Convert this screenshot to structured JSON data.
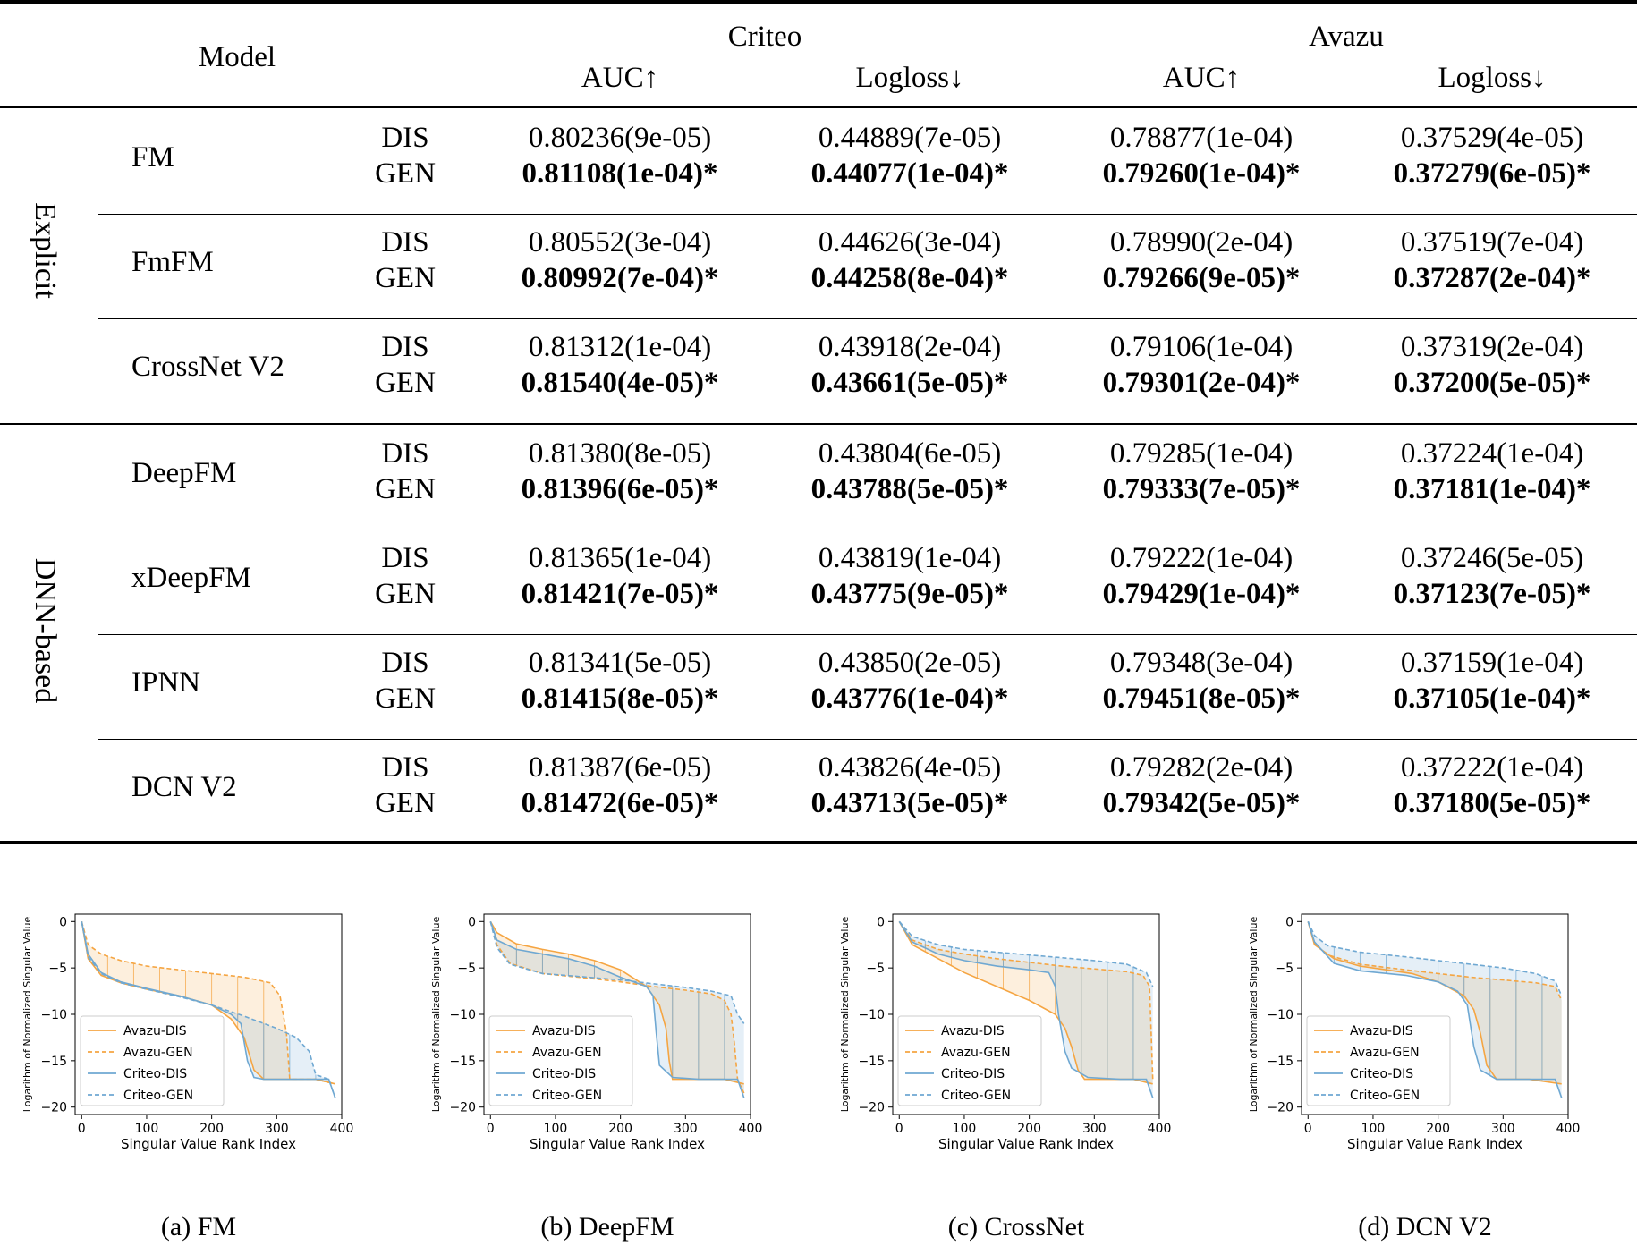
{
  "table": {
    "header": {
      "model": "Model",
      "datasets": [
        {
          "name": "Criteo",
          "metrics": [
            "AUC↑",
            "Logloss↓"
          ]
        },
        {
          "name": "Avazu",
          "metrics": [
            "AUC↑",
            "Logloss↓"
          ]
        }
      ]
    },
    "groups": [
      "Explicit",
      "DNN-based"
    ],
    "rows": [
      {
        "model": "FM",
        "dis": [
          "DIS",
          "0.80236(9e-05)",
          "0.44889(7e-05)",
          "0.78877(1e-04)",
          "0.37529(4e-05)"
        ],
        "gen": [
          "GEN",
          "0.81108(1e-04)*",
          "0.44077(1e-04)*",
          "0.79260(1e-04)*",
          "0.37279(6e-05)*"
        ]
      },
      {
        "model": "FmFM",
        "dis": [
          "DIS",
          "0.80552(3e-04)",
          "0.44626(3e-04)",
          "0.78990(2e-04)",
          "0.37519(7e-04)"
        ],
        "gen": [
          "GEN",
          "0.80992(7e-04)*",
          "0.44258(8e-04)*",
          "0.79266(9e-05)*",
          "0.37287(2e-04)*"
        ]
      },
      {
        "model": "CrossNet V2",
        "dis": [
          "DIS",
          "0.81312(1e-04)",
          "0.43918(2e-04)",
          "0.79106(1e-04)",
          "0.37319(2e-04)"
        ],
        "gen": [
          "GEN",
          "0.81540(4e-05)*",
          "0.43661(5e-05)*",
          "0.79301(2e-04)*",
          "0.37200(5e-05)*"
        ]
      },
      {
        "model": "DeepFM",
        "dis": [
          "DIS",
          "0.81380(8e-05)",
          "0.43804(6e-05)",
          "0.79285(1e-04)",
          "0.37224(1e-04)"
        ],
        "gen": [
          "GEN",
          "0.81396(6e-05)*",
          "0.43788(5e-05)*",
          "0.79333(7e-05)*",
          "0.37181(1e-04)*"
        ]
      },
      {
        "model": "xDeepFM",
        "dis": [
          "DIS",
          "0.81365(1e-04)",
          "0.43819(1e-04)",
          "0.79222(1e-04)",
          "0.37246(5e-05)"
        ],
        "gen": [
          "GEN",
          "0.81421(7e-05)*",
          "0.43775(9e-05)*",
          "0.79429(1e-04)*",
          "0.37123(7e-05)*"
        ]
      },
      {
        "model": "IPNN",
        "dis": [
          "DIS",
          "0.81341(5e-05)",
          "0.43850(2e-05)",
          "0.79348(3e-04)",
          "0.37159(1e-04)"
        ],
        "gen": [
          "GEN",
          "0.81415(8e-05)*",
          "0.43776(1e-04)*",
          "0.79451(8e-05)*",
          "0.37105(1e-04)*"
        ]
      },
      {
        "model": "DCN V2",
        "dis": [
          "DIS",
          "0.81387(6e-05)",
          "0.43826(4e-05)",
          "0.79282(2e-04)",
          "0.37222(1e-04)"
        ],
        "gen": [
          "GEN",
          "0.81472(6e-05)*",
          "0.43713(5e-05)*",
          "0.79342(5e-05)*",
          "0.37180(5e-05)*"
        ]
      }
    ]
  },
  "figures": {
    "ylabel": "Logarithm of Normalized Singular Value",
    "xlabel": "Singular Value Rank Index",
    "xticks": [
      "0",
      "100",
      "200",
      "300",
      "400"
    ],
    "yticks": [
      "0",
      "−5",
      "−10",
      "−15",
      "−20"
    ],
    "legend": [
      "Avazu-DIS",
      "Avazu-GEN",
      "Criteo-DIS",
      "Criteo-GEN"
    ],
    "colors": {
      "avazu": "#f5a542",
      "criteo": "#6fa8d2"
    },
    "captions": [
      "(a) FM",
      "(b) DeepFM",
      "(c) CrossNet",
      "(d) DCN V2"
    ]
  },
  "chart_data": [
    {
      "type": "line",
      "xlabel": "Singular Value Rank Index",
      "ylabel": "Logarithm of Normalized Singular Value",
      "xlim": [
        0,
        390
      ],
      "ylim": [
        -20,
        0
      ],
      "legend_placement": "lower-left",
      "series": [
        {
          "name": "Avazu-DIS",
          "x": [
            0,
            10,
            30,
            60,
            100,
            150,
            200,
            230,
            250,
            265,
            280,
            300,
            320,
            360,
            390
          ],
          "y": [
            0,
            -4,
            -5.8,
            -6.6,
            -7.3,
            -8,
            -9,
            -10.5,
            -12.5,
            -16,
            -17,
            -17,
            -17,
            -17,
            -17.5
          ]
        },
        {
          "name": "Avazu-GEN",
          "x": [
            0,
            10,
            30,
            60,
            100,
            150,
            200,
            250,
            290,
            305,
            315,
            320,
            360,
            390
          ],
          "y": [
            0,
            -2.5,
            -3.5,
            -4.2,
            -4.8,
            -5.2,
            -5.6,
            -6,
            -6.6,
            -8,
            -12,
            -17,
            -17,
            -17.5
          ]
        },
        {
          "name": "Criteo-DIS",
          "x": [
            0,
            10,
            30,
            60,
            100,
            150,
            200,
            230,
            245,
            255,
            265,
            280,
            320,
            380,
            390
          ],
          "y": [
            0,
            -3.5,
            -5.5,
            -6.5,
            -7.2,
            -8,
            -9,
            -10,
            -11,
            -15,
            -16.8,
            -17,
            -17,
            -17,
            -19
          ]
        },
        {
          "name": "Criteo-GEN",
          "x": [
            0,
            10,
            30,
            60,
            100,
            150,
            200,
            250,
            300,
            330,
            350,
            360,
            380,
            390
          ],
          "y": [
            0,
            -3.8,
            -5.6,
            -6.6,
            -7.3,
            -8.1,
            -9,
            -10.2,
            -11.5,
            -12.5,
            -14,
            -16.5,
            -17,
            -19
          ]
        }
      ]
    },
    {
      "type": "line",
      "xlabel": "Singular Value Rank Index",
      "ylabel": "Logarithm of Normalized Singular Value",
      "xlim": [
        0,
        390
      ],
      "ylim": [
        -20,
        0
      ],
      "legend_placement": "lower-left",
      "series": [
        {
          "name": "Avazu-DIS",
          "x": [
            0,
            10,
            40,
            80,
            120,
            160,
            200,
            240,
            260,
            270,
            275,
            280,
            300,
            360,
            390
          ],
          "y": [
            0,
            -1.2,
            -2.4,
            -3,
            -3.5,
            -4.2,
            -5.2,
            -7,
            -9,
            -11.5,
            -15,
            -17,
            -17,
            -17,
            -17.5
          ]
        },
        {
          "name": "Avazu-GEN",
          "x": [
            0,
            10,
            30,
            80,
            150,
            200,
            250,
            300,
            340,
            360,
            370,
            375,
            380,
            390
          ],
          "y": [
            0,
            -2.5,
            -4.5,
            -5.6,
            -6.1,
            -6.5,
            -7,
            -7.4,
            -7.8,
            -8.5,
            -10,
            -13,
            -17,
            -18.5
          ]
        },
        {
          "name": "Criteo-DIS",
          "x": [
            0,
            10,
            40,
            80,
            120,
            160,
            200,
            240,
            250,
            255,
            260,
            280,
            320,
            380,
            390
          ],
          "y": [
            0,
            -2,
            -3,
            -3.5,
            -4,
            -4.8,
            -6,
            -7,
            -8,
            -12,
            -15.5,
            -16.8,
            -17,
            -17,
            -19
          ]
        },
        {
          "name": "Criteo-GEN",
          "x": [
            0,
            10,
            30,
            80,
            150,
            200,
            250,
            300,
            340,
            370,
            380,
            390
          ],
          "y": [
            0,
            -2.8,
            -4.6,
            -5.6,
            -6,
            -6.3,
            -6.7,
            -7.1,
            -7.5,
            -8,
            -10,
            -11
          ]
        }
      ]
    },
    {
      "type": "line",
      "xlabel": "Singular Value Rank Index",
      "ylabel": "Logarithm of Normalized Singular Value",
      "xlim": [
        0,
        390
      ],
      "ylim": [
        -20,
        0
      ],
      "legend_placement": "lower-left",
      "series": [
        {
          "name": "Avazu-DIS",
          "x": [
            0,
            20,
            60,
            100,
            150,
            200,
            240,
            255,
            265,
            275,
            285,
            300,
            360,
            390
          ],
          "y": [
            0,
            -2.5,
            -4,
            -5.5,
            -7,
            -8.5,
            -10,
            -11.5,
            -13.5,
            -16,
            -17,
            -17,
            -17,
            -17.5
          ]
        },
        {
          "name": "Avazu-GEN",
          "x": [
            0,
            20,
            60,
            100,
            150,
            200,
            250,
            300,
            350,
            375,
            385,
            390
          ],
          "y": [
            0,
            -2,
            -3,
            -3.5,
            -4,
            -4.4,
            -4.8,
            -5.1,
            -5.4,
            -5.8,
            -7,
            -17
          ]
        },
        {
          "name": "Criteo-DIS",
          "x": [
            0,
            20,
            60,
            100,
            150,
            200,
            230,
            240,
            245,
            255,
            265,
            290,
            340,
            380,
            390
          ],
          "y": [
            0,
            -2.2,
            -3.5,
            -4.2,
            -4.8,
            -5.2,
            -5.5,
            -7,
            -10,
            -14,
            -15.8,
            -16.8,
            -17,
            -17,
            -19
          ]
        },
        {
          "name": "Criteo-GEN",
          "x": [
            0,
            20,
            60,
            100,
            150,
            200,
            250,
            300,
            350,
            380,
            390
          ],
          "y": [
            0,
            -1.6,
            -2.5,
            -3,
            -3.3,
            -3.6,
            -3.9,
            -4.2,
            -4.6,
            -5.5,
            -7
          ]
        }
      ]
    },
    {
      "type": "line",
      "xlabel": "Singular Value Rank Index",
      "ylabel": "Logarithm of Normalized Singular Value",
      "xlim": [
        0,
        390
      ],
      "ylim": [
        -20,
        0
      ],
      "legend_placement": "lower-left",
      "series": [
        {
          "name": "Avazu-DIS",
          "x": [
            0,
            10,
            40,
            80,
            120,
            160,
            200,
            240,
            255,
            265,
            275,
            290,
            340,
            390
          ],
          "y": [
            0,
            -2.5,
            -4,
            -4.8,
            -5.2,
            -5.6,
            -6.5,
            -8,
            -9.5,
            -12,
            -15.5,
            -17,
            -17,
            -17.5
          ]
        },
        {
          "name": "Avazu-GEN",
          "x": [
            0,
            10,
            30,
            80,
            150,
            200,
            250,
            300,
            350,
            380,
            390
          ],
          "y": [
            0,
            -2.4,
            -3.6,
            -4.6,
            -5.2,
            -5.6,
            -6,
            -6.3,
            -6.6,
            -7,
            -8.5
          ]
        },
        {
          "name": "Criteo-DIS",
          "x": [
            0,
            10,
            40,
            80,
            150,
            200,
            230,
            245,
            255,
            265,
            290,
            340,
            380,
            390
          ],
          "y": [
            0,
            -2.2,
            -4.5,
            -5.3,
            -5.8,
            -6.5,
            -7.5,
            -9,
            -13.5,
            -16,
            -17,
            -17,
            -17,
            -19
          ]
        },
        {
          "name": "Criteo-GEN",
          "x": [
            0,
            10,
            30,
            80,
            150,
            200,
            250,
            300,
            350,
            380,
            390
          ],
          "y": [
            0,
            -1.5,
            -2.6,
            -3.3,
            -3.8,
            -4.2,
            -4.6,
            -5,
            -5.6,
            -6.4,
            -8
          ]
        }
      ]
    }
  ]
}
